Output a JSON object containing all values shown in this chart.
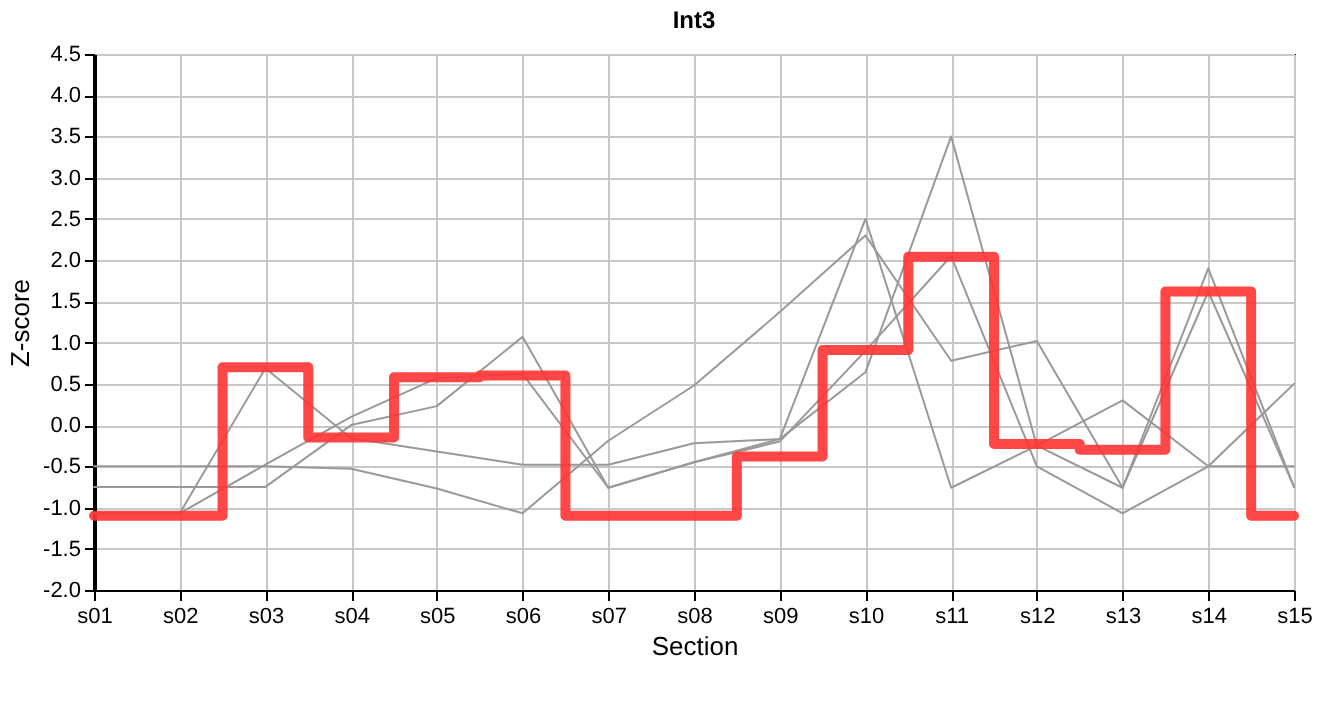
{
  "chart_data": {
    "type": "line",
    "title": "Int3",
    "xlabel": "Section",
    "ylabel": "Z-score",
    "categories": [
      "s01",
      "s02",
      "s03",
      "s04",
      "s05",
      "s06",
      "s07",
      "s08",
      "s09",
      "s10",
      "s11",
      "s12",
      "s13",
      "s14",
      "s15"
    ],
    "series": [
      {
        "color": "#999999",
        "values": [
          -0.5,
          -0.5,
          -0.5,
          -0.53,
          -0.77,
          -1.07,
          -0.19,
          0.48,
          1.37,
          2.3,
          0.78,
          1.02,
          -0.76,
          1.62,
          -0.75
        ]
      },
      {
        "color": "#999999",
        "values": [
          -0.75,
          -0.75,
          -0.75,
          0.0,
          0.23,
          1.07,
          -0.76,
          -0.45,
          -0.17,
          2.5,
          -0.76,
          -0.25,
          0.3,
          -0.5,
          -0.5
        ]
      },
      {
        "color": "#999999",
        "values": [
          -1.07,
          -1.07,
          0.69,
          -0.16,
          -0.32,
          -0.48,
          -0.48,
          -0.22,
          -0.17,
          0.64,
          3.5,
          -0.25,
          -0.76,
          1.9,
          -0.75
        ]
      },
      {
        "color": "#999999",
        "values": [
          -1.07,
          -1.07,
          -0.48,
          0.1,
          0.57,
          0.62,
          -0.76,
          -0.45,
          -0.2,
          0.9,
          2.05,
          -0.5,
          -1.07,
          -0.5,
          0.5
        ]
      },
      {
        "type": "step",
        "color": "#ff3333",
        "values": [
          -1.1,
          -1.1,
          0.7,
          -0.15,
          0.58,
          0.6,
          -1.1,
          -1.1,
          -0.38,
          0.91,
          2.04,
          -0.23,
          -0.3,
          1.62,
          -1.1
        ]
      }
    ],
    "ylim": [
      -2.0,
      4.5
    ],
    "yticks": [
      {
        "value": -2.0,
        "label": "-2.0"
      },
      {
        "value": -1.5,
        "label": "-1.5"
      },
      {
        "value": -1.0,
        "label": "-1.0"
      },
      {
        "value": -0.5,
        "label": "-0.5"
      },
      {
        "value": 0.0,
        "label": "0.0"
      },
      {
        "value": 0.5,
        "label": "0.5"
      },
      {
        "value": 1.0,
        "label": "1.0"
      },
      {
        "value": 1.5,
        "label": "1.5"
      },
      {
        "value": 2.0,
        "label": "2.0"
      },
      {
        "value": 2.5,
        "label": "2.5"
      },
      {
        "value": 3.0,
        "label": "3.0"
      },
      {
        "value": 3.5,
        "label": "3.5"
      },
      {
        "value": 4.0,
        "label": "4.0"
      },
      {
        "value": 4.5,
        "label": "4.5"
      }
    ],
    "grid": true
  }
}
